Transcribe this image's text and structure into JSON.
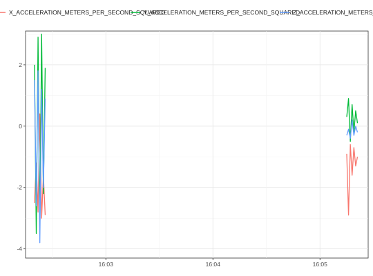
{
  "chart_data": {
    "type": "line",
    "title": "",
    "xlabel": "",
    "ylabel": "",
    "legend_position": "top",
    "grid": true,
    "xlim": [
      "16:02:15",
      "16:05:27"
    ],
    "ylim": [
      -4.3,
      3.1
    ],
    "x_ticks": [
      "16:03",
      "16:04",
      "16:05"
    ],
    "y_ticks": [
      -4,
      -2,
      0,
      2
    ],
    "x_tick_labels": [
      "16:03",
      "16:04",
      "16:05"
    ],
    "y_tick_labels": [
      "-4",
      "-2",
      "0",
      "2"
    ],
    "series": [
      {
        "name": "X_ACCELERATION_METERS_PER_SECOND_SQUARED",
        "color": "#F8766D",
        "x": [
          "16:02:20",
          "16:02:21",
          "16:02:22",
          "16:02:23",
          "16:02:24",
          "16:02:25",
          "16:02:26",
          "16:05:15",
          "16:05:16",
          "16:05:17",
          "16:05:18",
          "16:05:19",
          "16:05:20",
          "16:05:21"
        ],
        "values": [
          -2.5,
          -1.2,
          -2.8,
          0.4,
          -3.0,
          -1.6,
          -2.9,
          -0.9,
          -2.9,
          -0.6,
          -1.6,
          -0.7,
          -1.3,
          -1.0
        ]
      },
      {
        "name": "Y_ACCELERATION_METERS_PER_SECOND_SQUARED",
        "color": "#00BA38",
        "x": [
          "16:02:20",
          "16:02:21",
          "16:02:22",
          "16:02:23",
          "16:02:24",
          "16:02:25",
          "16:02:26",
          "16:05:15",
          "16:05:16",
          "16:05:17",
          "16:05:18",
          "16:05:19",
          "16:05:20",
          "16:05:21"
        ],
        "values": [
          2.0,
          -3.5,
          2.9,
          -3.4,
          3.0,
          -2.2,
          1.9,
          0.3,
          0.9,
          -0.5,
          0.7,
          -0.2,
          0.5,
          0.1
        ]
      },
      {
        "name": "Z_ACCELERATION_METERS_PER_SECOND_SQUARED",
        "color": "#619CFF",
        "x": [
          "16:02:20",
          "16:02:21",
          "16:02:22",
          "16:02:23",
          "16:02:24",
          "16:02:25",
          "16:02:26",
          "16:05:15",
          "16:05:16",
          "16:05:17",
          "16:05:18",
          "16:05:19",
          "16:05:20",
          "16:05:21"
        ],
        "values": [
          1.5,
          -2.6,
          1.8,
          -3.8,
          1.2,
          -2.0,
          0.9,
          -0.3,
          -0.1,
          -0.4,
          0.2,
          -0.3,
          0.0,
          -0.2
        ]
      }
    ]
  }
}
